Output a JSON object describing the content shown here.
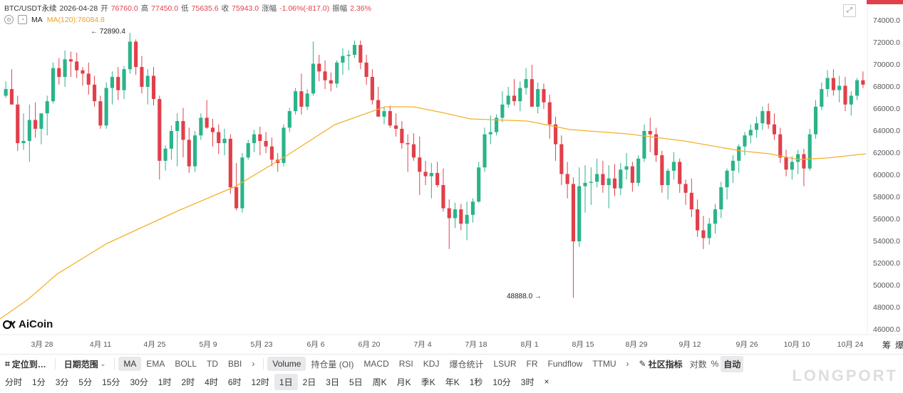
{
  "header": {
    "symbol": "BTC/USDT永续",
    "date": "2026-04-28",
    "open_label": "开",
    "open": "76760.0",
    "high_label": "高",
    "high": "77450.0",
    "low_label": "低",
    "low": "75635.6",
    "close_label": "收",
    "close": "75943.0",
    "change_label": "涨幅",
    "change": "-1.06%(-817.0)",
    "amp_label": "振幅",
    "amp": "2.36%"
  },
  "ma_row": {
    "label": "MA",
    "value": "MA(120):76084.8"
  },
  "annotations": {
    "high_marker": "← 72890.4",
    "low_marker": "48888.0 →"
  },
  "logo": {
    "text": "AiCoin"
  },
  "colors": {
    "up": "#2bb38a",
    "down": "#e0404a",
    "ma": "#f3b12b"
  },
  "icons": [
    "alarm-icon",
    "eye-icon",
    "expand-icon",
    "locate-icon",
    "chevron-down-icon",
    "chevron-right-icon",
    "edit-icon",
    "percent-icon"
  ],
  "chart_data": {
    "type": "candlestick",
    "title": "",
    "yaxis_ticks": [
      "74000.0",
      "72000.0",
      "70000.0",
      "68000.0",
      "66000.0",
      "64000.0",
      "62000.0",
      "60000.0",
      "58000.0",
      "56000.0",
      "54000.0",
      "52000.0",
      "50000.0",
      "48000.0",
      "46000.0"
    ],
    "xaxis_ticks": [
      "3月 28",
      "4月 11",
      "4月 25",
      "5月 9",
      "5月 23",
      "6月 6",
      "6月 20",
      "7月 4",
      "7月 18",
      "8月 1",
      "8月 15",
      "8月 29",
      "9月 12",
      "9月 26",
      "10月 10",
      "10月 24"
    ],
    "ylim": [
      45000,
      75000
    ],
    "candles": [
      [
        67200,
        68500,
        67000,
        67800
      ],
      [
        67800,
        69600,
        66700,
        66400
      ],
      [
        66400,
        67200,
        62200,
        62900
      ],
      [
        62900,
        65600,
        62300,
        63100
      ],
      [
        63100,
        66400,
        61200,
        65000
      ],
      [
        65000,
        66600,
        63400,
        64200
      ],
      [
        64200,
        65500,
        62800,
        65600
      ],
      [
        65600,
        67200,
        63600,
        66700
      ],
      [
        66700,
        70200,
        66500,
        69700
      ],
      [
        69700,
        70600,
        68200,
        68900
      ],
      [
        68900,
        71300,
        68000,
        70500
      ],
      [
        70500,
        71200,
        68900,
        70300
      ],
      [
        70300,
        71100,
        68800,
        69500
      ],
      [
        69500,
        69800,
        68100,
        69200
      ],
      [
        69200,
        70200,
        67300,
        68200
      ],
      [
        68200,
        69000,
        66200,
        66700
      ],
      [
        66700,
        67200,
        64200,
        64500
      ],
      [
        64500,
        68400,
        64200,
        67900
      ],
      [
        67900,
        69400,
        66400,
        68900
      ],
      [
        68900,
        69800,
        66800,
        67700
      ],
      [
        67700,
        69900,
        66900,
        69600
      ],
      [
        69600,
        72890,
        69200,
        72100
      ],
      [
        72100,
        72300,
        69100,
        69800
      ],
      [
        69800,
        70800,
        67400,
        68000
      ],
      [
        68000,
        69600,
        66400,
        69000
      ],
      [
        69000,
        69800,
        66300,
        66900
      ],
      [
        66900,
        67200,
        59600,
        61300
      ],
      [
        61300,
        62700,
        60400,
        62400
      ],
      [
        62400,
        64500,
        61400,
        64000
      ],
      [
        64000,
        65600,
        60800,
        64900
      ],
      [
        64900,
        66100,
        61600,
        63200
      ],
      [
        63200,
        64300,
        60200,
        60800
      ],
      [
        60800,
        64000,
        60300,
        63600
      ],
      [
        63600,
        65600,
        63200,
        65200
      ],
      [
        65200,
        66800,
        64200,
        64300
      ],
      [
        64300,
        65100,
        62600,
        63900
      ],
      [
        63900,
        64600,
        61900,
        62900
      ],
      [
        62900,
        64200,
        61800,
        63300
      ],
      [
        63300,
        63700,
        58300,
        58900
      ],
      [
        58900,
        61100,
        56800,
        57000
      ],
      [
        57000,
        62000,
        56600,
        61600
      ],
      [
        61600,
        63200,
        61400,
        62900
      ],
      [
        62900,
        64100,
        62100,
        63700
      ],
      [
        63700,
        64400,
        61800,
        63100
      ],
      [
        63100,
        63900,
        62000,
        62600
      ],
      [
        62600,
        63400,
        60800,
        61400
      ],
      [
        61400,
        62000,
        60300,
        61100
      ],
      [
        61100,
        64600,
        60800,
        64300
      ],
      [
        64300,
        66100,
        63900,
        65800
      ],
      [
        65800,
        67900,
        65500,
        67600
      ],
      [
        67600,
        69200,
        65500,
        66200
      ],
      [
        66200,
        67800,
        65900,
        67400
      ],
      [
        67400,
        72100,
        67200,
        70100
      ],
      [
        70100,
        70900,
        68500,
        69400
      ],
      [
        69400,
        70400,
        67800,
        68600
      ],
      [
        68600,
        69300,
        67600,
        68300
      ],
      [
        68300,
        70400,
        67900,
        70200
      ],
      [
        70200,
        71500,
        69100,
        70800
      ],
      [
        70800,
        71300,
        69500,
        70900
      ],
      [
        70900,
        72200,
        70600,
        71800
      ],
      [
        71800,
        72200,
        69600,
        70200
      ],
      [
        70200,
        70900,
        68200,
        68900
      ],
      [
        68900,
        69600,
        66400,
        66800
      ],
      [
        66800,
        68000,
        65500,
        65300
      ],
      [
        65300,
        66200,
        64600,
        65800
      ],
      [
        65800,
        66300,
        64300,
        64500
      ],
      [
        64500,
        65600,
        63500,
        64200
      ],
      [
        64200,
        64900,
        62400,
        62900
      ],
      [
        62900,
        63700,
        60300,
        62800
      ],
      [
        62800,
        63800,
        61300,
        61600
      ],
      [
        61600,
        63500,
        58200,
        60300
      ],
      [
        60300,
        61300,
        59100,
        59900
      ],
      [
        59900,
        61100,
        57900,
        60200
      ],
      [
        60200,
        61200,
        58900,
        59100
      ],
      [
        59100,
        60600,
        56700,
        57000
      ],
      [
        57000,
        57800,
        53300,
        56100
      ],
      [
        56100,
        57500,
        55200,
        56900
      ],
      [
        56900,
        57400,
        55000,
        55600
      ],
      [
        55600,
        57600,
        54100,
        56400
      ],
      [
        56400,
        57900,
        55700,
        57600
      ],
      [
        57600,
        61200,
        57500,
        60700
      ],
      [
        60700,
        64300,
        60300,
        63700
      ],
      [
        63700,
        65400,
        62800,
        63900
      ],
      [
        63900,
        65500,
        63600,
        65200
      ],
      [
        65200,
        67600,
        64800,
        66400
      ],
      [
        66400,
        68000,
        66100,
        67200
      ],
      [
        67200,
        68700,
        66300,
        66700
      ],
      [
        66700,
        68500,
        65800,
        67900
      ],
      [
        67900,
        69700,
        67300,
        68700
      ],
      [
        68700,
        70000,
        66400,
        66200
      ],
      [
        66200,
        68400,
        65600,
        67800
      ],
      [
        67800,
        68300,
        66000,
        66600
      ],
      [
        66600,
        67300,
        63300,
        64600
      ],
      [
        64600,
        65300,
        61300,
        62800
      ],
      [
        62800,
        63600,
        59100,
        60100
      ],
      [
        60100,
        61200,
        57900,
        59200
      ],
      [
        59200,
        59800,
        48888,
        54000
      ],
      [
        54000,
        60700,
        53500,
        59000
      ],
      [
        59000,
        60900,
        56600,
        59300
      ],
      [
        59300,
        60700,
        57300,
        59400
      ],
      [
        59400,
        61500,
        58900,
        60100
      ],
      [
        60100,
        61300,
        58400,
        59100
      ],
      [
        59100,
        60900,
        57000,
        59700
      ],
      [
        59700,
        61000,
        58100,
        58800
      ],
      [
        58800,
        61100,
        58200,
        60500
      ],
      [
        60500,
        62000,
        59600,
        60800
      ],
      [
        60800,
        61200,
        58500,
        59300
      ],
      [
        59300,
        61800,
        59000,
        61500
      ],
      [
        61500,
        64600,
        61200,
        64000
      ],
      [
        64000,
        65200,
        62100,
        63700
      ],
      [
        63700,
        64300,
        61200,
        61800
      ],
      [
        61800,
        62200,
        58400,
        59100
      ],
      [
        59100,
        60600,
        57800,
        60400
      ],
      [
        60400,
        62100,
        59600,
        61200
      ],
      [
        61200,
        61500,
        58400,
        59200
      ],
      [
        59200,
        59600,
        57300,
        58400
      ],
      [
        58400,
        59700,
        56200,
        56900
      ],
      [
        56900,
        57800,
        54400,
        55000
      ],
      [
        55000,
        56300,
        53300,
        54300
      ],
      [
        54300,
        56100,
        53700,
        55600
      ],
      [
        55600,
        57400,
        54700,
        56900
      ],
      [
        56900,
        59400,
        56100,
        58900
      ],
      [
        58900,
        60600,
        57800,
        60400
      ],
      [
        60400,
        61800,
        59300,
        61300
      ],
      [
        61300,
        62800,
        60200,
        62600
      ],
      [
        62600,
        63900,
        61800,
        63600
      ],
      [
        63600,
        64600,
        62900,
        64100
      ],
      [
        64100,
        65300,
        63400,
        64700
      ],
      [
        64700,
        66200,
        64100,
        65800
      ],
      [
        65800,
        66500,
        64200,
        64600
      ],
      [
        64600,
        65600,
        63200,
        63700
      ],
      [
        63700,
        64300,
        61100,
        61600
      ],
      [
        61600,
        62300,
        59900,
        60500
      ],
      [
        60500,
        61700,
        59600,
        61200
      ],
      [
        61200,
        62300,
        60100,
        61900
      ],
      [
        61900,
        62400,
        59000,
        60600
      ],
      [
        60600,
        64200,
        60400,
        63700
      ],
      [
        63700,
        66800,
        63300,
        66200
      ],
      [
        66200,
        68400,
        65900,
        67800
      ],
      [
        67800,
        69500,
        67100,
        68800
      ],
      [
        68800,
        69600,
        67200,
        67700
      ],
      [
        67700,
        69000,
        66600,
        68100
      ],
      [
        68100,
        68900,
        65800,
        66400
      ],
      [
        66400,
        67600,
        65400,
        67200
      ],
      [
        67200,
        68800,
        66800,
        68600
      ],
      [
        68600,
        69400,
        67900,
        68200
      ]
    ]
  },
  "toolbar1": {
    "locate": "定位到…",
    "date_range": "日期范围",
    "items": [
      "MA",
      "EMA",
      "BOLL",
      "TD",
      "BBI"
    ],
    "sub_items": [
      "Volume",
      "持仓量 (OI)",
      "MACD",
      "RSI",
      "KDJ",
      "爆仓统计",
      "LSUR",
      "FR",
      "Fundflow",
      "TTMU"
    ],
    "community": "社区指标",
    "log": "对数",
    "percent": "%",
    "auto": "自动"
  },
  "toolbar2": {
    "periods": [
      "分时",
      "1分",
      "3分",
      "5分",
      "15分",
      "30分",
      "1时",
      "2时",
      "4时",
      "6时",
      "12时",
      "1日",
      "2日",
      "3日",
      "5日",
      "周K",
      "月K",
      "季K",
      "年K",
      "1秒",
      "10分",
      "3时"
    ],
    "close": "×"
  },
  "corner_labels": [
    "筹",
    "爆"
  ],
  "watermark": "LONGPORT"
}
